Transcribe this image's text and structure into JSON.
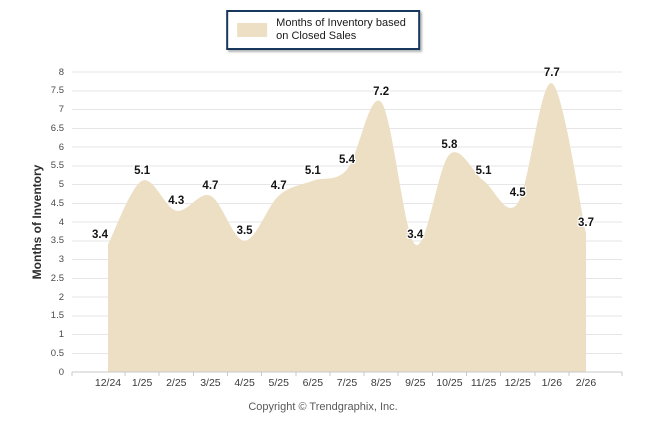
{
  "legend": {
    "line1": "Months of Inventory based",
    "line2": "on Closed Sales"
  },
  "footer": {
    "text": "Copyright © Trendgraphix, Inc."
  },
  "chart_data": {
    "type": "area",
    "title": "",
    "xlabel": "",
    "ylabel": "Months of Inventory",
    "series_name": "Months of Inventory based on Closed Sales",
    "categories": [
      "12/24",
      "1/25",
      "2/25",
      "3/25",
      "4/25",
      "5/25",
      "6/25",
      "7/25",
      "8/25",
      "9/25",
      "10/25",
      "11/25",
      "12/25",
      "1/26",
      "2/26"
    ],
    "values": [
      3.4,
      5.1,
      4.3,
      4.7,
      3.5,
      4.7,
      5.1,
      5.4,
      7.2,
      3.4,
      5.8,
      5.1,
      4.5,
      7.7,
      3.7
    ],
    "ylim": [
      0,
      8
    ],
    "ytick_step": 0.5,
    "ytick_labels": [
      "8",
      "7.5",
      "7",
      "6.5",
      "6",
      "5.5",
      "5",
      "4.5",
      "4",
      "3.5",
      "3",
      "2.5",
      "2",
      "1.5",
      "1",
      "0.5",
      "0"
    ],
    "grid": true,
    "smooth": true,
    "legend_position": "top-center",
    "colors": {
      "fill": "#ECDFC3",
      "gridline": "#E6E6E6",
      "axis": "#C9C9C9",
      "ytick_text": "#4A4A4A",
      "xtick_text": "#3A3A3A",
      "data_label": "#141414",
      "legend_border": "#17375D",
      "footer_text": "#595959"
    }
  }
}
